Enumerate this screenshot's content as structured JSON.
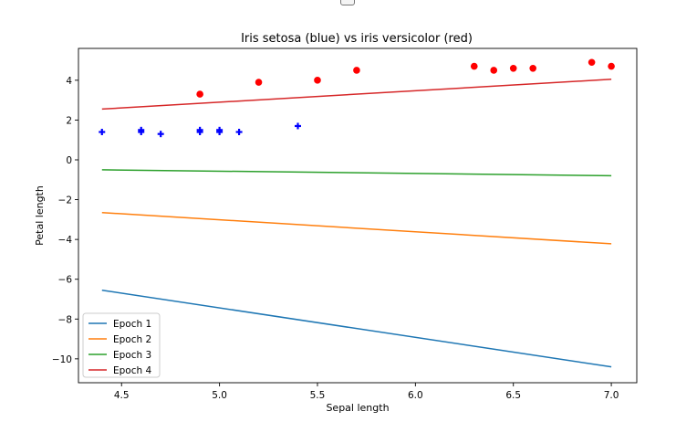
{
  "chart_data": {
    "type": "scatter",
    "title": "Iris setosa (blue) vs iris versicolor (red)",
    "xlabel": "Sepal length",
    "ylabel": "Petal length",
    "xlim": [
      4.28,
      7.13
    ],
    "ylim": [
      -11.2,
      5.6
    ],
    "xticks": [
      4.5,
      5.0,
      5.5,
      6.0,
      6.5,
      7.0
    ],
    "xtick_labels": [
      "4.5",
      "5.0",
      "5.5",
      "6.0",
      "6.5",
      "7.0"
    ],
    "yticks": [
      -10,
      -8,
      -6,
      -4,
      -2,
      0,
      2,
      4
    ],
    "ytick_labels": [
      "−10",
      "−8",
      "−6",
      "−4",
      "−2",
      "0",
      "2",
      "4"
    ],
    "legend_position": "lower-left",
    "scatter_series": [
      {
        "marker": "plus",
        "color": "#0000ff",
        "points": [
          [
            4.4,
            1.4
          ],
          [
            4.6,
            1.4
          ],
          [
            4.6,
            1.5
          ],
          [
            4.7,
            1.3
          ],
          [
            4.9,
            1.4
          ],
          [
            4.9,
            1.5
          ],
          [
            5.0,
            1.4
          ],
          [
            5.0,
            1.5
          ],
          [
            5.1,
            1.4
          ],
          [
            5.4,
            1.7
          ]
        ]
      },
      {
        "marker": "circle",
        "color": "#ff0000",
        "points": [
          [
            4.9,
            3.3
          ],
          [
            5.2,
            3.9
          ],
          [
            5.5,
            4.0
          ],
          [
            5.7,
            4.5
          ],
          [
            6.3,
            4.7
          ],
          [
            6.4,
            4.5
          ],
          [
            6.5,
            4.6
          ],
          [
            6.6,
            4.6
          ],
          [
            6.9,
            4.9
          ],
          [
            7.0,
            4.7
          ]
        ]
      }
    ],
    "line_series": [
      {
        "name": "Epoch 1",
        "color": "#1f77b4",
        "x": [
          4.4,
          7.0
        ],
        "y": [
          -6.55,
          -10.4
        ]
      },
      {
        "name": "Epoch 2",
        "color": "#ff7f0e",
        "x": [
          4.4,
          7.0
        ],
        "y": [
          -2.65,
          -4.22
        ]
      },
      {
        "name": "Epoch 3",
        "color": "#2ca02c",
        "x": [
          4.4,
          7.0
        ],
        "y": [
          -0.5,
          -0.8
        ]
      },
      {
        "name": "Epoch 4",
        "color": "#d62728",
        "x": [
          4.4,
          7.0
        ],
        "y": [
          2.55,
          4.05
        ]
      }
    ]
  }
}
